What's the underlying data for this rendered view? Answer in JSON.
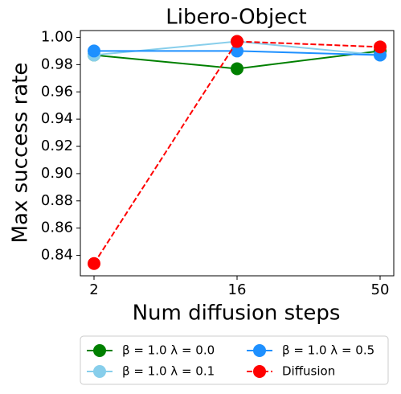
{
  "chart_data": {
    "type": "line",
    "title": "Libero-Object",
    "x_label": "Num diffusion steps",
    "y_label": "Max success rate",
    "categories": [
      "2",
      "16",
      "50"
    ],
    "series": [
      {
        "name": "β = 1.0 λ = 0.0",
        "color": "#008000",
        "linestyle": "solid",
        "values": [
          0.987,
          0.977,
          0.99
        ]
      },
      {
        "name": "β = 1.0 λ = 0.1",
        "color": "#87ceeb",
        "linestyle": "solid",
        "values": [
          0.987,
          0.997,
          0.987
        ]
      },
      {
        "name": "β = 1.0 λ = 0.5",
        "color": "#1e90ff",
        "linestyle": "solid",
        "values": [
          0.99,
          0.99,
          0.987
        ]
      },
      {
        "name": "Diffusion",
        "color": "#ff0000",
        "linestyle": "dashed",
        "values": [
          0.834,
          0.997,
          0.993
        ]
      }
    ],
    "ylim": [
      0.825,
      1.005
    ],
    "yticks": [
      0.84,
      0.86,
      0.88,
      {
        "value": 0.9,
        "label": "0.90"
      },
      0.92,
      0.94,
      0.96,
      0.98,
      {
        "value": 1,
        "label": "1.00"
      }
    ],
    "grid": false,
    "legend": "below"
  }
}
